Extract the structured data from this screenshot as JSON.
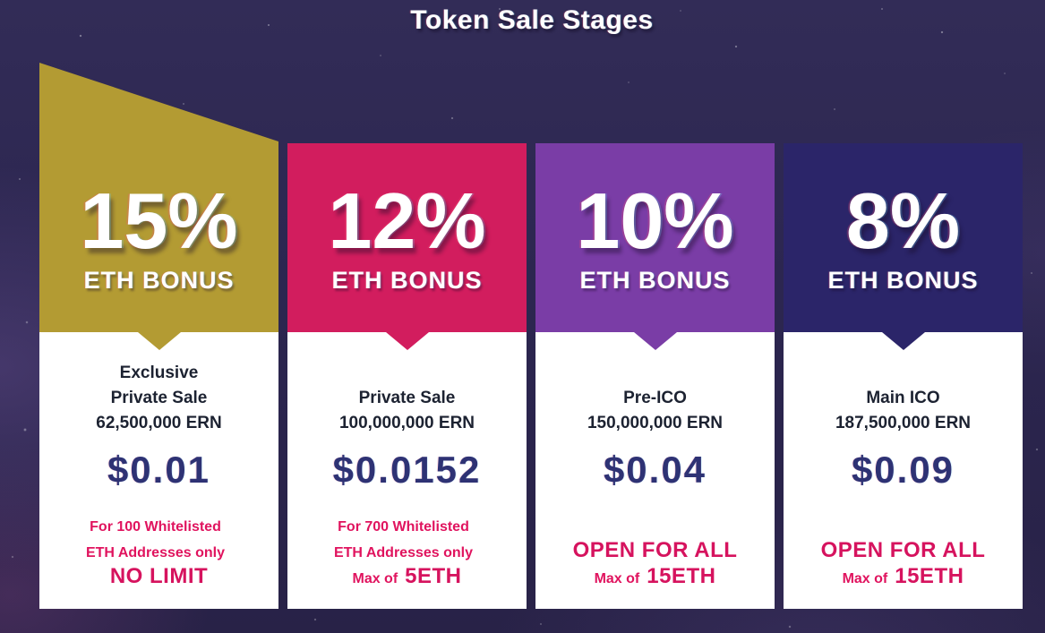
{
  "title": "Token Sale Stages",
  "colors": {
    "background": "#2c2750",
    "card_body": "#ffffff",
    "stage_gold": "#b39b33",
    "stage_pink": "#d21d5e",
    "stage_purple": "#7a3da6",
    "stage_navy": "#2b2569",
    "price_text": "#2e3274",
    "name_text": "#1c2231",
    "accent_text": "#e0135e"
  },
  "stages": [
    {
      "bonus_percent": "15%",
      "bonus_label": "ETH BONUS",
      "header_color": "#b39b33",
      "name_lines": [
        "Exclusive",
        "Private Sale",
        "62,500,000 ERN"
      ],
      "price": "$0.01",
      "footer_rows": [
        {
          "small": "For 100 Whitelisted",
          "big": ""
        },
        {
          "small": "ETH Addresses only",
          "big": ""
        },
        {
          "small": "",
          "big": "NO LIMIT"
        }
      ]
    },
    {
      "bonus_percent": "12%",
      "bonus_label": "ETH BONUS",
      "header_color": "#d21d5e",
      "name_lines": [
        "",
        "Private Sale",
        "100,000,000 ERN"
      ],
      "price": "$0.0152",
      "footer_rows": [
        {
          "small": "For 700 Whitelisted",
          "big": ""
        },
        {
          "small": "ETH Addresses only",
          "big": ""
        },
        {
          "small": "Max of",
          "big": "5ETH"
        }
      ]
    },
    {
      "bonus_percent": "10%",
      "bonus_label": "ETH BONUS",
      "header_color": "#7a3da6",
      "name_lines": [
        "",
        "Pre-ICO",
        "150,000,000 ERN"
      ],
      "price": "$0.04",
      "footer_rows": [
        {
          "small": "",
          "big": ""
        },
        {
          "small": "",
          "big": "OPEN FOR ALL"
        },
        {
          "small": "Max of",
          "big": "15ETH"
        }
      ]
    },
    {
      "bonus_percent": "8%",
      "bonus_label": "ETH BONUS",
      "header_color": "#2b2569",
      "name_lines": [
        "",
        "Main ICO",
        "187,500,000 ERN"
      ],
      "price": "$0.09",
      "footer_rows": [
        {
          "small": "",
          "big": ""
        },
        {
          "small": "",
          "big": "OPEN FOR ALL"
        },
        {
          "small": "Max of",
          "big": "15ETH"
        }
      ]
    }
  ]
}
